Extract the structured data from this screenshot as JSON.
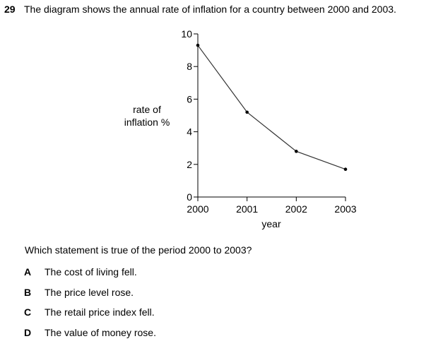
{
  "question": {
    "number": "29",
    "text": "The diagram shows the annual rate of inflation for a country between 2000 and 2003.",
    "prompt": "Which statement is true of the period 2000 to 2003?",
    "options": [
      {
        "letter": "A",
        "text": "The cost of living fell."
      },
      {
        "letter": "B",
        "text": "The price level rose."
      },
      {
        "letter": "C",
        "text": "The retail price index fell."
      },
      {
        "letter": "D",
        "text": "The value of money rose."
      }
    ]
  },
  "chart_data": {
    "type": "line",
    "title": "",
    "xlabel": "year",
    "ylabel_lines": [
      "rate of",
      "inflation %"
    ],
    "x": [
      2000,
      2001,
      2002,
      2003
    ],
    "y": [
      9.3,
      5.2,
      2.8,
      1.7
    ],
    "xticks": [
      "2000",
      "2001",
      "2002",
      "2003"
    ],
    "yticks": [
      0,
      2,
      4,
      6,
      8,
      10
    ],
    "xlim": [
      2000,
      2003
    ],
    "ylim": [
      0,
      10
    ],
    "grid": false,
    "line_color": "#333333"
  }
}
